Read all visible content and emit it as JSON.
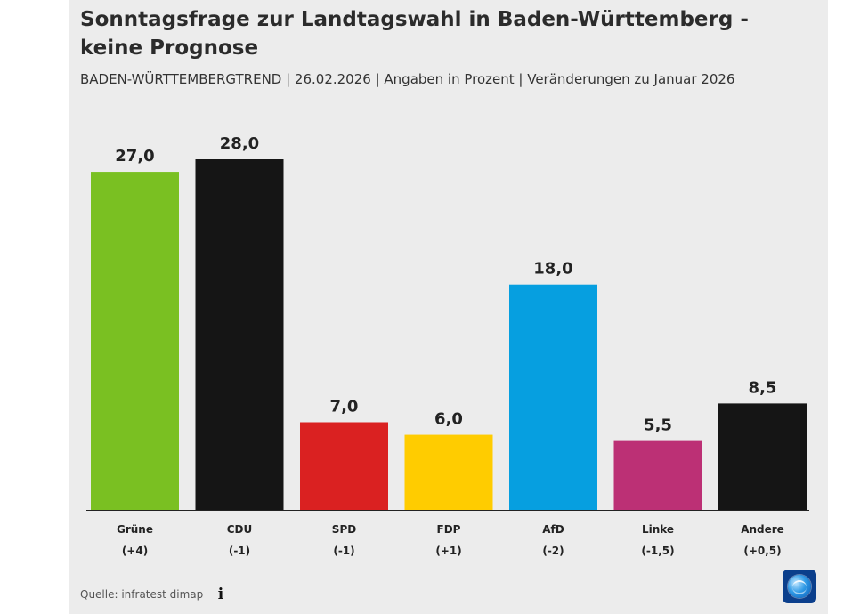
{
  "header": {
    "title": "Sonntagsfrage zur Landtagswahl in Baden-Württemberg - keine Prognose",
    "subtitle": "BADEN-WÜRTTEMBERGTREND | 26.02.2026 | Angaben in Prozent | Veränderungen zu Januar 2026"
  },
  "chart_data": {
    "type": "bar",
    "title": "Sonntagsfrage zur Landtagswahl in Baden-Württemberg - keine Prognose",
    "subtitle": "BADEN-WÜRTTEMBERGTREND | 26.02.2026 | Angaben in Prozent | Veränderungen zu Januar 2026",
    "categories": [
      "Grüne",
      "CDU",
      "SPD",
      "FDP",
      "AfD",
      "Linke",
      "Andere"
    ],
    "values": [
      27.0,
      28.0,
      7.0,
      6.0,
      18.0,
      5.5,
      8.5
    ],
    "value_labels": [
      "27,0",
      "28,0",
      "7,0",
      "6,0",
      "18,0",
      "5,5",
      "8,5"
    ],
    "changes": [
      "(+4)",
      "(-1)",
      "(-1)",
      "(+1)",
      "(-2)",
      "(-1,5)",
      "(+0,5)"
    ],
    "colors": [
      "#7ac022",
      "#151515",
      "#da2121",
      "#ffcc00",
      "#069fe0",
      "#bc3075",
      "#151515"
    ],
    "xlabel": "",
    "ylabel": "",
    "ylim": [
      0,
      28
    ],
    "grid": false,
    "legend": "none"
  },
  "footer": {
    "source": "Quelle: infratest dimap",
    "info_icon": "info-icon",
    "brand_logo": "tagesschau-logo"
  }
}
